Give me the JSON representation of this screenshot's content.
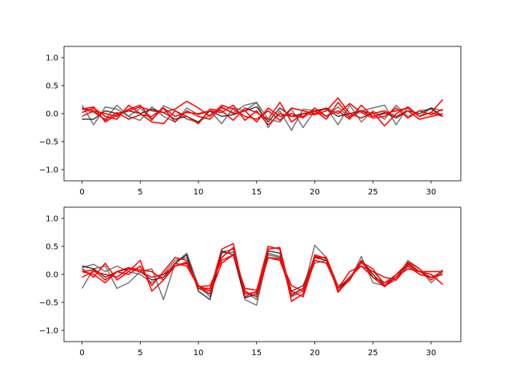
{
  "chart_data": [
    {
      "type": "line",
      "xlim": [
        -1.55,
        32.55
      ],
      "ylim": [
        -1.2,
        1.2
      ],
      "x_ticks": [
        0,
        5,
        10,
        15,
        20,
        25,
        30
      ],
      "y_ticks": [
        -1.0,
        -0.5,
        0.0,
        0.5,
        1.0
      ],
      "x_tick_labels": [
        "0",
        "5",
        "10",
        "15",
        "20",
        "25",
        "30"
      ],
      "y_tick_labels": [
        "−1.0",
        "−0.5",
        "0.0",
        "0.5",
        "1.0"
      ],
      "grid": false,
      "series_colors": {
        "gray": "#555555",
        "dark": "#111111",
        "red": "#ff0000"
      },
      "series": [
        {
          "color": "gray",
          "values": [
            0.15,
            -0.2,
            0.12,
            0.08,
            -0.05,
            0.1,
            -0.12,
            0.14,
            0.05,
            -0.1,
            -0.15,
            -0.02,
            0.1,
            0.02,
            0.15,
            0.2,
            -0.25,
            0.05,
            -0.3,
            0.08,
            0.05,
            -0.05,
            0.12,
            -0.08,
            0.05,
            0.1,
            0.15,
            -0.2,
            0.12,
            -0.05,
            0.1,
            0.05
          ]
        },
        {
          "color": "gray",
          "values": [
            0.08,
            0.02,
            -0.1,
            0.15,
            -0.05,
            -0.12,
            0.12,
            -0.05,
            -0.15,
            0.1,
            -0.02,
            0.05,
            -0.18,
            0.1,
            0.05,
            0.2,
            -0.1,
            -0.15,
            0.08,
            -0.25,
            0.05,
            0.1,
            -0.2,
            0.15,
            -0.15,
            0.05,
            -0.1,
            0.15,
            -0.05,
            0.05,
            0.08,
            -0.05
          ]
        },
        {
          "color": "dark",
          "values": [
            -0.1,
            -0.1,
            0.05,
            0.0,
            0.05,
            0.0,
            0.08,
            0.02,
            -0.1,
            -0.05,
            -0.15,
            0.05,
            -0.05,
            -0.02,
            0.05,
            0.12,
            -0.15,
            0.1,
            -0.05,
            0.0,
            0.05,
            0.08,
            -0.05,
            0.0,
            0.05,
            -0.05,
            0.02,
            -0.08,
            0.05,
            0.0,
            0.1,
            -0.05
          ]
        },
        {
          "color": "red",
          "values": [
            0.02,
            0.1,
            -0.05,
            -0.1,
            0.15,
            0.0,
            -0.15,
            -0.18,
            0.05,
            -0.05,
            -0.18,
            0.08,
            0.05,
            -0.12,
            0.1,
            0.02,
            -0.1,
            0.2,
            -0.15,
            0.0,
            -0.02,
            0.05,
            0.28,
            0.0,
            -0.08,
            0.02,
            -0.22,
            0.0,
            0.12,
            -0.05,
            0.02,
            0.25
          ]
        },
        {
          "color": "red",
          "values": [
            0.08,
            0.12,
            -0.15,
            -0.02,
            0.05,
            0.12,
            0.05,
            0.02,
            0.08,
            0.22,
            0.1,
            -0.05,
            0.15,
            0.08,
            -0.05,
            -0.1,
            0.05,
            -0.12,
            0.1,
            0.05,
            0.0,
            0.1,
            0.0,
            0.18,
            0.02,
            -0.08,
            -0.05,
            0.1,
            -0.08,
            0.05,
            -0.02,
            0.08
          ]
        },
        {
          "color": "red",
          "values": [
            -0.05,
            0.05,
            0.0,
            -0.05,
            0.08,
            0.15,
            -0.1,
            0.1,
            -0.05,
            0.02,
            0.0,
            0.05,
            0.02,
            0.15,
            -0.12,
            0.05,
            -0.2,
            0.0,
            -0.05,
            -0.05,
            0.05,
            -0.1,
            0.2,
            -0.05,
            0.05,
            0.0,
            0.05,
            -0.05,
            0.05,
            -0.1,
            -0.05,
            0.0
          ]
        },
        {
          "color": "red",
          "values": [
            0.1,
            0.05,
            -0.12,
            0.02,
            -0.1,
            -0.02,
            -0.05,
            0.1,
            -0.15,
            0.05,
            -0.05,
            -0.1,
            0.12,
            0.0,
            0.05,
            -0.15,
            0.1,
            -0.05,
            0.0,
            -0.08,
            0.1,
            -0.05,
            0.05,
            -0.1,
            0.15,
            -0.05,
            0.0,
            0.05,
            0.1,
            -0.05,
            0.02,
            -0.05
          ]
        }
      ]
    },
    {
      "type": "line",
      "xlim": [
        -1.55,
        32.55
      ],
      "ylim": [
        -1.2,
        1.2
      ],
      "x_ticks": [
        0,
        5,
        10,
        15,
        20,
        25,
        30
      ],
      "y_ticks": [
        -1.0,
        -0.5,
        0.0,
        0.5,
        1.0
      ],
      "x_tick_labels": [
        "0",
        "5",
        "10",
        "15",
        "20",
        "25",
        "30"
      ],
      "y_tick_labels": [
        "−1.0",
        "−0.5",
        "0.0",
        "0.5",
        "1.0"
      ],
      "grid": false,
      "series_colors": {
        "gray": "#555555",
        "dark": "#111111",
        "red": "#ff0000"
      },
      "series": [
        {
          "color": "gray",
          "values": [
            -0.25,
            0.1,
            0.15,
            -0.25,
            -0.15,
            0.05,
            0.1,
            -0.45,
            0.2,
            0.38,
            -0.2,
            -0.4,
            0.38,
            0.4,
            -0.45,
            -0.55,
            0.38,
            0.32,
            -0.4,
            -0.3,
            0.52,
            0.3,
            -0.2,
            -0.1,
            0.32,
            -0.15,
            -0.2,
            -0.1,
            0.25,
            0.1,
            -0.15,
            0.05
          ]
        },
        {
          "color": "gray",
          "values": [
            0.12,
            0.18,
            0.05,
            0.15,
            0.05,
            0.0,
            -0.15,
            0.0,
            0.25,
            0.3,
            -0.25,
            -0.35,
            0.4,
            0.45,
            -0.3,
            -0.45,
            0.35,
            0.3,
            -0.35,
            -0.25,
            0.2,
            0.25,
            -0.3,
            -0.05,
            0.2,
            0.05,
            -0.15,
            0.0,
            0.2,
            0.0,
            -0.05,
            0.05
          ]
        },
        {
          "color": "dark",
          "values": [
            0.15,
            0.1,
            -0.05,
            0.05,
            0.1,
            0.05,
            -0.1,
            -0.05,
            0.2,
            0.35,
            -0.3,
            -0.45,
            0.42,
            0.35,
            -0.42,
            -0.35,
            0.42,
            0.38,
            -0.3,
            -0.2,
            0.3,
            0.25,
            -0.25,
            -0.1,
            0.25,
            0.0,
            -0.2,
            -0.05,
            0.18,
            0.05,
            -0.05,
            0.0
          ]
        },
        {
          "color": "red",
          "values": [
            0.1,
            -0.05,
            0.2,
            -0.1,
            0.05,
            0.25,
            -0.3,
            -0.1,
            0.15,
            0.2,
            -0.2,
            -0.3,
            0.45,
            0.55,
            -0.4,
            -0.3,
            0.5,
            0.45,
            -0.48,
            -0.35,
            0.35,
            0.28,
            -0.3,
            -0.1,
            0.22,
            0.1,
            -0.2,
            0.0,
            0.2,
            0.05,
            0.0,
            -0.18
          ]
        },
        {
          "color": "red",
          "values": [
            0.05,
            0.0,
            -0.15,
            0.05,
            0.0,
            0.15,
            -0.2,
            0.05,
            0.3,
            0.25,
            -0.25,
            -0.25,
            0.3,
            0.48,
            -0.35,
            -0.32,
            0.45,
            0.48,
            -0.38,
            -0.25,
            0.32,
            0.3,
            -0.32,
            -0.08,
            0.25,
            -0.05,
            -0.22,
            -0.05,
            0.22,
            0.1,
            -0.1,
            0.08
          ]
        },
        {
          "color": "red",
          "values": [
            -0.05,
            0.05,
            0.0,
            -0.05,
            0.1,
            0.05,
            -0.05,
            0.0,
            0.15,
            0.22,
            -0.2,
            -0.35,
            0.2,
            0.35,
            -0.3,
            -0.4,
            0.3,
            0.25,
            -0.3,
            -0.4,
            0.25,
            0.2,
            -0.25,
            -0.05,
            0.15,
            0.05,
            -0.05,
            -0.1,
            0.15,
            0.0,
            -0.05,
            0.0
          ]
        },
        {
          "color": "red",
          "values": [
            0.05,
            0.08,
            -0.1,
            0.05,
            0.12,
            0.08,
            0.05,
            -0.1,
            0.2,
            0.15,
            -0.22,
            -0.2,
            0.25,
            0.35,
            -0.25,
            -0.28,
            0.3,
            0.28,
            -0.2,
            -0.3,
            0.3,
            0.3,
            -0.25,
            0.05,
            0.15,
            -0.05,
            -0.15,
            -0.05,
            0.1,
            0.05,
            0.05,
            0.05
          ]
        }
      ]
    }
  ]
}
